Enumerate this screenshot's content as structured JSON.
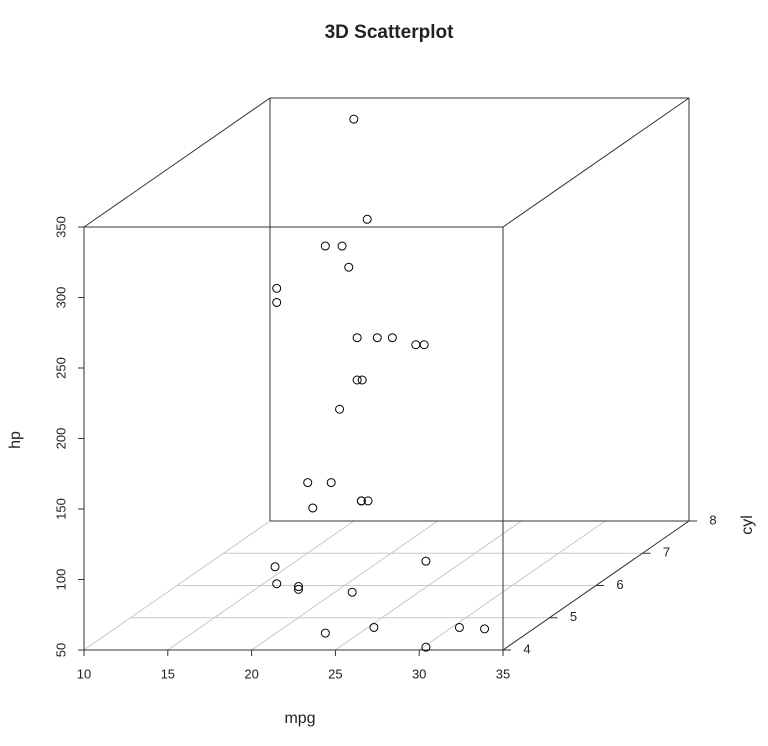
{
  "chart_data": {
    "type": "scatter3d",
    "title": "3D Scatterplot",
    "x_label": "mpg",
    "y_label": "cyl",
    "z_label": "hp",
    "x": [
      21,
      21,
      22.8,
      21.4,
      18.7,
      18.1,
      14.3,
      24.4,
      22.8,
      19.2,
      17.8,
      16.4,
      17.3,
      15.2,
      10.4,
      10.4,
      14.7,
      32.4,
      30.4,
      33.9,
      21.5,
      15.5,
      15.2,
      13.3,
      19.2,
      27.3,
      26,
      30.4,
      15.8,
      19.7,
      15,
      21.4
    ],
    "y": [
      6,
      6,
      4,
      6,
      8,
      6,
      8,
      4,
      4,
      6,
      6,
      8,
      8,
      8,
      8,
      8,
      8,
      4,
      4,
      4,
      4,
      8,
      8,
      8,
      8,
      4,
      4,
      4,
      8,
      6,
      8,
      4
    ],
    "z": [
      110,
      110,
      93,
      110,
      175,
      105,
      245,
      62,
      95,
      123,
      123,
      180,
      180,
      180,
      205,
      215,
      230,
      66,
      52,
      65,
      97,
      150,
      150,
      245,
      175,
      66,
      91,
      113,
      264,
      175,
      335,
      109
    ],
    "xlim": [
      10,
      35
    ],
    "ylim": [
      4,
      8
    ],
    "zlim": [
      50,
      350
    ],
    "xticks": [
      10,
      15,
      20,
      25,
      30,
      35
    ],
    "yticks": [
      4,
      5,
      6,
      7,
      8
    ],
    "zticks": [
      50,
      100,
      150,
      200,
      250,
      300,
      350
    ],
    "grid": true,
    "color": "#000000"
  }
}
